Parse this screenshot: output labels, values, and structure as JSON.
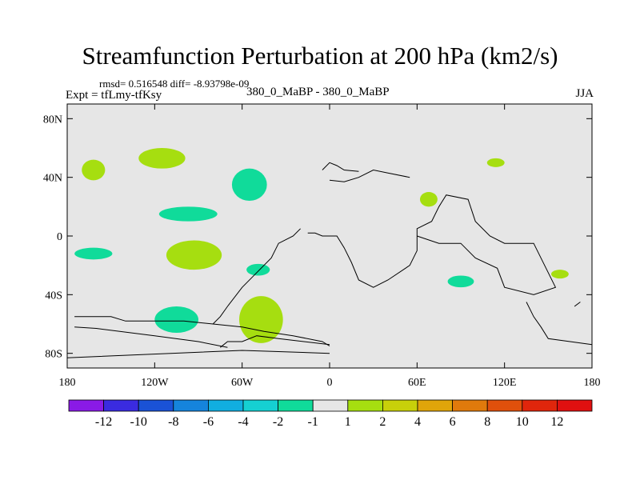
{
  "header": {
    "title": "Streamfunction Perturbation at 200 hPa (km2/s)",
    "stats": "rmsd= 0.516548 diff= -8.93798e-09",
    "expt": "Expt = tfLmy-tfKsy",
    "center": "380_0_MaBP - 380_0_MaBP",
    "season": "JJA"
  },
  "chart_data": {
    "type": "heatmap",
    "title": "Streamfunction Perturbation at 200 hPa (km2/s)",
    "xlabel": "",
    "ylabel": "",
    "xlim": [
      -180,
      180
    ],
    "ylim": [
      -90,
      90
    ],
    "x_ticks": [
      {
        "value": -180,
        "label": "180"
      },
      {
        "value": -120,
        "label": "120W"
      },
      {
        "value": -60,
        "label": "60W"
      },
      {
        "value": 0,
        "label": "0"
      },
      {
        "value": 60,
        "label": "60E"
      },
      {
        "value": 120,
        "label": "120E"
      },
      {
        "value": 180,
        "label": "180"
      }
    ],
    "y_ticks": [
      {
        "value": 80,
        "label": "80N"
      },
      {
        "value": 40,
        "label": "40N"
      },
      {
        "value": 0,
        "label": "0"
      },
      {
        "value": -40,
        "label": "40S"
      },
      {
        "value": -80,
        "label": "80S"
      }
    ],
    "background_range": "-1 to 1",
    "anomalies": [
      {
        "name": "anomaly-162W-45N",
        "lon": -162,
        "lat": 45,
        "dlon": 8,
        "dlat": 7,
        "bin": "1 to 2"
      },
      {
        "name": "anomaly-115W-53N",
        "lon": -115,
        "lat": 53,
        "dlon": 16,
        "dlat": 7,
        "bin": "1 to 2"
      },
      {
        "name": "anomaly-55W-35N",
        "lon": -55,
        "lat": 35,
        "dlon": 12,
        "dlat": 11,
        "bin": "-2 to -1"
      },
      {
        "name": "anomaly-97W-15N",
        "lon": -97,
        "lat": 15,
        "dlon": 20,
        "dlat": 5,
        "bin": "-2 to -1"
      },
      {
        "name": "anomaly-162W-12S",
        "lon": -162,
        "lat": -12,
        "dlon": 13,
        "dlat": 4,
        "bin": "-2 to -1"
      },
      {
        "name": "anomaly-93W-13S",
        "lon": -93,
        "lat": -13,
        "dlon": 19,
        "dlat": 10,
        "bin": "1 to 2"
      },
      {
        "name": "anomaly-49W-23S",
        "lon": -49,
        "lat": -23,
        "dlon": 8,
        "dlat": 4,
        "bin": "-2 to -1"
      },
      {
        "name": "anomaly-47W-57S",
        "lon": -47,
        "lat": -57,
        "dlon": 15,
        "dlat": 16,
        "bin": "1 to 2"
      },
      {
        "name": "anomaly-105W-57S",
        "lon": -105,
        "lat": -57,
        "dlon": 15,
        "dlat": 9,
        "bin": "-2 to -1"
      },
      {
        "name": "anomaly-68E-25N",
        "lon": 68,
        "lat": 25,
        "dlon": 6,
        "dlat": 5,
        "bin": "1 to 2"
      },
      {
        "name": "anomaly-114E-50N",
        "lon": 114,
        "lat": 50,
        "dlon": 6,
        "dlat": 3,
        "bin": "1 to 2"
      },
      {
        "name": "anomaly-90E-31S",
        "lon": 90,
        "lat": -31,
        "dlon": 9,
        "dlat": 4,
        "bin": "-2 to -1"
      },
      {
        "name": "anomaly-158E-26S",
        "lon": 158,
        "lat": -26,
        "dlon": 6,
        "dlat": 3,
        "bin": "1 to 2"
      }
    ],
    "colorbar": {
      "labels": [
        "-12",
        "-10",
        "-8",
        "-6",
        "-4",
        "-2",
        "-1",
        "1",
        "2",
        "4",
        "6",
        "8",
        "10",
        "12"
      ],
      "colors": [
        "#8a1ae6",
        "#3a2be0",
        "#1a52d6",
        "#1584dc",
        "#11aee0",
        "#15d0d2",
        "#10db9a",
        "#e6e6e6",
        "#a6de10",
        "#c8d00a",
        "#e0a50a",
        "#e07a0c",
        "#e0500c",
        "#e0260c",
        "#e01010"
      ]
    },
    "coastline_lonlat": [
      [
        [
          -175,
          -55
        ],
        [
          -150,
          -55
        ],
        [
          -140,
          -58
        ],
        [
          -100,
          -58
        ],
        [
          -80,
          -60
        ],
        [
          -60,
          -62
        ],
        [
          -45,
          -65
        ],
        [
          -25,
          -68
        ],
        [
          -5,
          -72
        ],
        [
          0,
          -75
        ]
      ],
      [
        [
          -175,
          -62
        ],
        [
          -160,
          -63
        ],
        [
          -120,
          -68
        ],
        [
          -90,
          -72
        ],
        [
          -70,
          -76
        ]
      ],
      [
        [
          -75,
          -76
        ],
        [
          -70,
          -72
        ],
        [
          -60,
          -72
        ],
        [
          -50,
          -68
        ],
        [
          -35,
          -70
        ],
        [
          0,
          -74
        ]
      ],
      [
        [
          -180,
          -83
        ],
        [
          -60,
          -78
        ],
        [
          0,
          -80
        ]
      ],
      [
        [
          -80,
          -60
        ],
        [
          -75,
          -55
        ],
        [
          -70,
          -48
        ],
        [
          -60,
          -35
        ],
        [
          -50,
          -25
        ],
        [
          -40,
          -15
        ],
        [
          -35,
          -5
        ],
        [
          -25,
          0
        ],
        [
          -20,
          5
        ]
      ],
      [
        [
          -15,
          2
        ],
        [
          -10,
          2
        ],
        [
          -5,
          0
        ],
        [
          5,
          0
        ],
        [
          10,
          -8
        ],
        [
          15,
          -18
        ],
        [
          20,
          -30
        ],
        [
          30,
          -35
        ],
        [
          40,
          -30
        ],
        [
          55,
          -20
        ],
        [
          60,
          -10
        ],
        [
          60,
          5
        ],
        [
          70,
          10
        ],
        [
          75,
          20
        ],
        [
          80,
          28
        ],
        [
          95,
          25
        ],
        [
          100,
          10
        ],
        [
          110,
          0
        ],
        [
          120,
          -5
        ],
        [
          140,
          -5
        ],
        [
          150,
          -25
        ],
        [
          155,
          -35
        ],
        [
          140,
          -40
        ],
        [
          120,
          -35
        ],
        [
          115,
          -22
        ],
        [
          100,
          -15
        ],
        [
          90,
          -5
        ],
        [
          75,
          -5
        ],
        [
          60,
          0
        ]
      ],
      [
        [
          0,
          38
        ],
        [
          10,
          37
        ],
        [
          20,
          40
        ],
        [
          30,
          45
        ],
        [
          40,
          43
        ],
        [
          55,
          40
        ]
      ],
      [
        [
          -5,
          45
        ],
        [
          0,
          50
        ],
        [
          5,
          48
        ],
        [
          10,
          45
        ],
        [
          20,
          44
        ]
      ],
      [
        [
          135,
          -45
        ],
        [
          140,
          -55
        ],
        [
          145,
          -62
        ],
        [
          150,
          -70
        ],
        [
          165,
          -72
        ],
        [
          180,
          -74
        ]
      ],
      [
        [
          168,
          -48
        ],
        [
          172,
          -45
        ]
      ]
    ]
  }
}
